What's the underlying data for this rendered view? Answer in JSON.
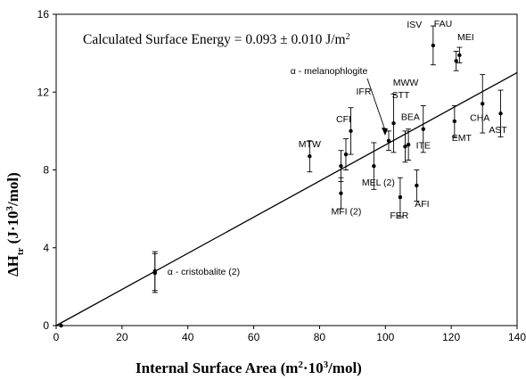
{
  "chart_data": {
    "type": "scatter",
    "title": "",
    "annotation": {
      "text_main": "Calculated Surface Energy = 0.093 ± 0.010 J/m",
      "text_sup": "2"
    },
    "xlabel": {
      "main": "Internal Surface Area (m",
      "sup": "2",
      "mid": "·10",
      "sup2": "3",
      "end": "/mol)"
    },
    "ylabel": {
      "main": "ΔH",
      "sub": "tr",
      "mid": " (J·10",
      "sup": "3",
      "end": "/mol)"
    },
    "xlim": [
      0,
      140
    ],
    "ylim": [
      0,
      16
    ],
    "xticks": [
      0,
      20,
      40,
      60,
      80,
      100,
      120,
      140
    ],
    "yticks": [
      0,
      4,
      8,
      12,
      16
    ],
    "fit_line": {
      "x": [
        0,
        140
      ],
      "y": [
        0,
        13.0
      ]
    },
    "points": [
      {
        "x": 1.5,
        "y": 0.0,
        "err": 0.0,
        "label": ""
      },
      {
        "x": 30,
        "y": 2.8,
        "err": 1.0,
        "label": "α - cristobalite (2)"
      },
      {
        "x": 30,
        "y": 2.7,
        "err": 1.0,
        "label": ""
      },
      {
        "x": 77,
        "y": 8.7,
        "err": 0.8,
        "label": "MTW"
      },
      {
        "x": 86.5,
        "y": 6.8,
        "err": 0.8,
        "label": "MFI (2)"
      },
      {
        "x": 86.5,
        "y": 8.2,
        "err": 0.8,
        "label": ""
      },
      {
        "x": 88,
        "y": 8.8,
        "err": 0.8,
        "label": ""
      },
      {
        "x": 89.5,
        "y": 10.0,
        "err": 1.2,
        "label": "CFI"
      },
      {
        "x": 96.5,
        "y": 8.2,
        "err": 1.2,
        "label": "MEL (2)"
      },
      {
        "x": 101,
        "y": 9.5,
        "err": 0.5,
        "label": "IFR"
      },
      {
        "x": 102.5,
        "y": 10.4,
        "err": 1.5,
        "label": "STT"
      },
      {
        "x": 104.5,
        "y": 6.6,
        "err": 1.0,
        "label": "FER"
      },
      {
        "x": 106,
        "y": 9.2,
        "err": 0.8,
        "label": "BEA"
      },
      {
        "x": 107,
        "y": 9.3,
        "err": 0.8,
        "label": ""
      },
      {
        "x": 109.5,
        "y": 7.2,
        "err": 0.8,
        "label": "AFI"
      },
      {
        "x": 111.5,
        "y": 10.1,
        "err": 1.2,
        "label": "ITE"
      },
      {
        "x": 114.5,
        "y": 14.4,
        "err": 1.0,
        "label": "ISV"
      },
      {
        "x": 121,
        "y": 10.5,
        "err": 0.8,
        "label": "EMT"
      },
      {
        "x": 121.5,
        "y": 13.6,
        "err": 0.5,
        "label": ""
      },
      {
        "x": 122.5,
        "y": 13.9,
        "err": 0.4,
        "label": "MEI"
      },
      {
        "x": 129.5,
        "y": 11.4,
        "err": 1.5,
        "label": "CHA"
      },
      {
        "x": 135,
        "y": 10.9,
        "err": 1.2,
        "label": "AST"
      }
    ],
    "extra_labels": [
      {
        "text": "FAU",
        "near_x": 117,
        "near_y": 15.2
      },
      {
        "text": "MWW",
        "near_x": 101,
        "near_y": 12.4
      },
      {
        "text": "α - melanophlogite",
        "near_x": 90,
        "near_y": 13.3
      }
    ]
  }
}
